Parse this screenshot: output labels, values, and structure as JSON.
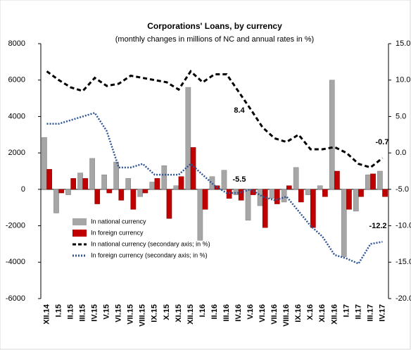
{
  "chart_data": {
    "type": "bar",
    "title": "Corporations' Loans, by currency",
    "subtitle": "(monthly changes in millions of NC and annual rates in %)",
    "categories": [
      "XII.14",
      "I.15",
      "II.15",
      "III.15",
      "IV.15",
      "V.15",
      "VI.15",
      "VII.15",
      "VIII.15",
      "IX.15",
      "X.15",
      "XI.15",
      "XII.15",
      "I.16",
      "II.16",
      "III.16",
      "IV.16",
      "V.16",
      "VI.16",
      "VII.16",
      "VIII.16",
      "IX.16",
      "X.16",
      "XI.16",
      "XII.16",
      "I.17",
      "II.17",
      "III.17",
      "IV.17"
    ],
    "series": [
      {
        "name": "In national currency",
        "color": "#a6a6a6",
        "type": "bar",
        "values": [
          2850,
          -1300,
          -300,
          900,
          1700,
          800,
          1500,
          600,
          -400,
          400,
          1300,
          200,
          5600,
          -2800,
          700,
          1050,
          -300,
          -1700,
          -900,
          -500,
          -700,
          1200,
          -300,
          200,
          6000,
          -3700,
          -1200,
          800,
          1000
        ]
      },
      {
        "name": "In foreign currency",
        "color": "#c00000",
        "type": "bar",
        "values": [
          1100,
          -200,
          600,
          600,
          -800,
          -200,
          -600,
          -1100,
          -200,
          600,
          -1600,
          700,
          2300,
          -1100,
          200,
          -500,
          -600,
          -300,
          -2100,
          -800,
          200,
          -700,
          -2100,
          -400,
          1000,
          -1100,
          -400,
          850,
          -400
        ]
      },
      {
        "name": "In national currency (secondary axis; in %)",
        "color": "#000000",
        "type": "line",
        "dash": "dashed",
        "axis": "y2",
        "values": [
          11.2,
          10,
          9,
          8.5,
          10.3,
          9.2,
          9.5,
          10.6,
          10.3,
          10,
          9.7,
          8.7,
          11.2,
          9.7,
          10.8,
          10.8,
          8.4,
          6,
          3.5,
          2,
          1.5,
          2.5,
          0.5,
          0.5,
          0.8,
          0,
          -1.5,
          -2,
          -0.7
        ]
      },
      {
        "name": "In foreign currency (secondary axis; in %)",
        "color": "#2f5597",
        "type": "line",
        "dash": "dotted",
        "axis": "y2",
        "values": [
          4,
          4,
          4.5,
          5,
          5.5,
          3,
          -2,
          -2,
          -1.5,
          -3,
          -3,
          -3,
          -1.5,
          -3,
          -4.5,
          -5.5,
          -5.5,
          -5,
          -6,
          -6.5,
          -6,
          -8,
          -10,
          -11.5,
          -14,
          -14.5,
          -15.2,
          -12.5,
          -12.2
        ]
      }
    ],
    "annotations": [
      "8.4",
      "-5.5",
      "-0.7",
      "-12.2"
    ],
    "ylim": [
      -6000,
      8000
    ],
    "yticks": [
      -6000,
      -4000,
      -2000,
      0,
      2000,
      4000,
      6000,
      8000
    ],
    "y2lim": [
      -20,
      15
    ],
    "y2ticks": [
      {
        "value": -20,
        "label": "-20.0"
      },
      {
        "value": -15,
        "label": "-15.0"
      },
      {
        "value": -10,
        "label": "-10.0"
      },
      {
        "value": -5,
        "label": "-5.0"
      },
      {
        "value": 0,
        "label": "0.0"
      },
      {
        "value": 5,
        "label": "5.0"
      },
      {
        "value": 10,
        "label": "10.0"
      },
      {
        "value": 15,
        "label": "15.0"
      }
    ],
    "legend": "lower left",
    "grid": false
  }
}
